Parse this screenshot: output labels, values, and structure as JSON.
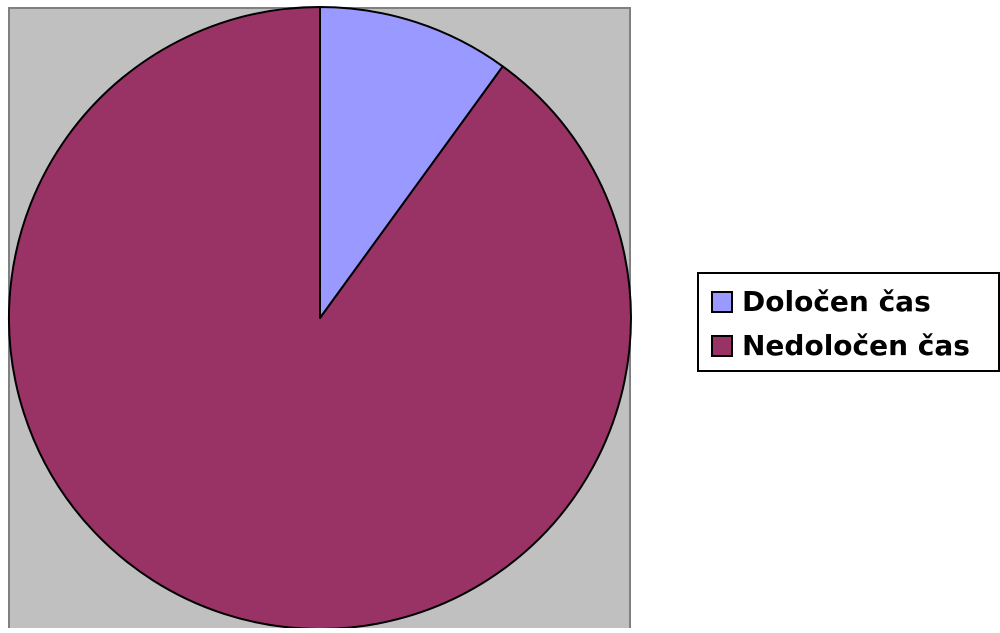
{
  "chart_data": {
    "type": "pie",
    "categories": [
      "Določen čas",
      "Nedoločen čas"
    ],
    "values": [
      10,
      90
    ],
    "colors": [
      "#9999ff",
      "#993366"
    ],
    "plot_background": "#c0c0c0",
    "start_angle_deg": 0,
    "direction": "clockwise",
    "legend_position": "right",
    "title": ""
  }
}
